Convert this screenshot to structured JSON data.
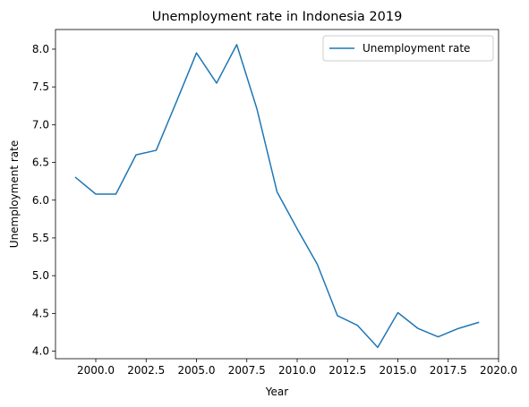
{
  "chart_data": {
    "type": "line",
    "title": "Unemployment rate in Indonesia 2019",
    "xlabel": "Year",
    "ylabel": "Unemployment rate",
    "xlim": [
      1998.0,
      2020.0
    ],
    "ylim": [
      3.9,
      8.26
    ],
    "xticks": [
      2000.0,
      2002.5,
      2005.0,
      2007.5,
      2010.0,
      2012.5,
      2015.0,
      2017.5,
      2020.0
    ],
    "xtick_labels": [
      "2000.0",
      "2002.5",
      "2005.0",
      "2007.5",
      "2010.0",
      "2012.5",
      "2015.0",
      "2017.5",
      "2020.0"
    ],
    "yticks": [
      4.0,
      4.5,
      5.0,
      5.5,
      6.0,
      6.5,
      7.0,
      7.5,
      8.0
    ],
    "ytick_labels": [
      "4.0",
      "4.5",
      "5.0",
      "5.5",
      "6.0",
      "6.5",
      "7.0",
      "7.5",
      "8.0"
    ],
    "grid": false,
    "legend_position": "top-right",
    "series": [
      {
        "name": "Unemployment rate",
        "color": "#1f77b4",
        "x": [
          1999,
          2000,
          2001,
          2002,
          2003,
          2004,
          2005,
          2006,
          2007,
          2008,
          2009,
          2010,
          2011,
          2012,
          2013,
          2014,
          2015,
          2016,
          2017,
          2018,
          2019
        ],
        "y": [
          6.3,
          6.08,
          6.08,
          6.6,
          6.66,
          7.3,
          7.95,
          7.55,
          8.06,
          7.21,
          6.11,
          5.62,
          5.15,
          4.47,
          4.34,
          4.05,
          4.51,
          4.3,
          4.19,
          4.3,
          4.38
        ]
      }
    ]
  }
}
